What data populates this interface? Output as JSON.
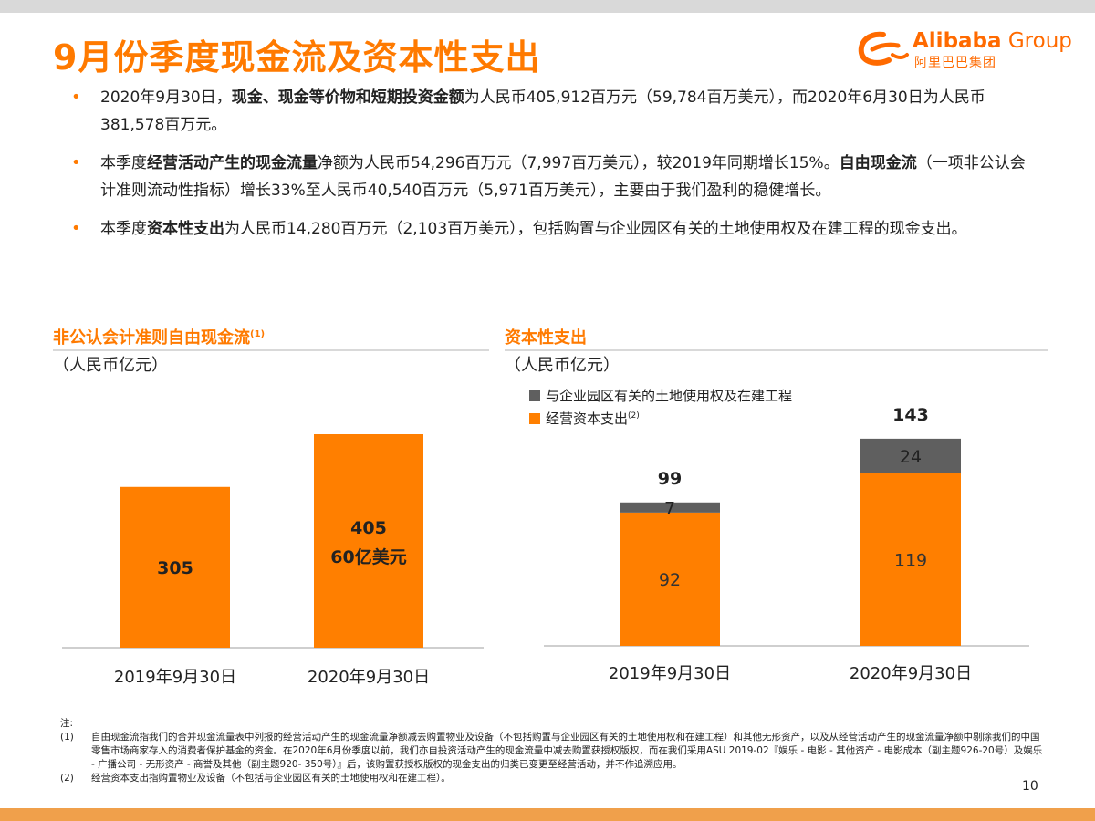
{
  "title": "9月份季度现金流及资本性支出",
  "logo": {
    "brand": "Alibaba",
    "group": "Group",
    "cn": "阿里巴巴集团"
  },
  "bullets": [
    {
      "parts": [
        {
          "t": "2020年9月30日，",
          "b": false
        },
        {
          "t": "现金、现金等价物和短期投资金额",
          "b": true
        },
        {
          "t": "为人民币405,912百万元（59,784百万美元），而2020年6月30日为人民币381,578百万元。",
          "b": false
        }
      ]
    },
    {
      "parts": [
        {
          "t": "本季度",
          "b": false
        },
        {
          "t": "经营活动产生的现金流量",
          "b": true
        },
        {
          "t": "净额为人民币54,296百万元（7,997百万美元），较2019年同期增长15%。",
          "b": false
        },
        {
          "t": "自由现金流",
          "b": true
        },
        {
          "t": "（一项非公认会计准则流动性指标）增长33%至人民币40,540百万元（5,971百万美元），主要由于我们盈利的稳健增长。",
          "b": false
        }
      ]
    },
    {
      "parts": [
        {
          "t": "本季度",
          "b": false
        },
        {
          "t": "资本性支出",
          "b": true
        },
        {
          "t": "为人民币14,280百万元（2,103百万美元），包括购置与企业园区有关的土地使用权及在建工程的现金支出。",
          "b": false
        }
      ]
    }
  ],
  "left_section": {
    "title": "非公认会计准则自由现金流",
    "note_mark": "(1)",
    "unit": "（人民币亿元）"
  },
  "right_section": {
    "title": "资本性支出",
    "unit": "（人民币亿元）"
  },
  "chart_data": [
    {
      "type": "bar",
      "title": "非公认会计准则自由现金流",
      "ylabel": "（人民币亿元）",
      "categories": [
        "2019年9月30日",
        "2020年9月30日"
      ],
      "series": [
        {
          "values": [
            305,
            405
          ],
          "color": "#ff7f00"
        }
      ],
      "bar_labels": [
        "305",
        "405"
      ],
      "extra_label": {
        "index": 1,
        "text": "60亿美元"
      },
      "ylim": [
        0,
        450
      ],
      "grid": false
    },
    {
      "type": "bar",
      "stacked": true,
      "title": "资本性支出",
      "ylabel": "（人民币亿元）",
      "categories": [
        "2019年9月30日",
        "2020年9月30日"
      ],
      "series": [
        {
          "name": "经营资本支出",
          "note_mark": "(2)",
          "values": [
            92,
            119
          ],
          "color": "#ff7f00"
        },
        {
          "name": "与企业园区有关的土地使用权及在建工程",
          "values": [
            7,
            24
          ],
          "color": "#5f5f5f"
        }
      ],
      "totals": [
        99,
        143
      ],
      "ylim": [
        0,
        170
      ],
      "legend": "top-left",
      "grid": false
    }
  ],
  "notes": {
    "label": "注:",
    "items": [
      {
        "key": "(1)",
        "text": "自由现金流指我们的合并现金流量表中列报的经营活动产生的现金流量净额减去购置物业及设备（不包括购置与企业园区有关的土地使用权和在建工程）和其他无形资产，以及从经营活动产生的现金流量净额中剔除我们的中国零售市场商家存入的消费者保护基金的资金。在2020年6月份季度以前，我们亦自投资活动产生的现金流量中减去购置获授权版权，而在我们采用ASU 2019-02『娱乐 - 电影 - 其他资产 - 电影成本（副主题926-20号）及娱乐 - 广播公司 - 无形资产 - 商誉及其他（副主题920- 350号）』后，该购置获授权版权的现金支出的归类已变更至经营活动，并不作追溯应用。"
      },
      {
        "key": "(2)",
        "text": "经营资本支出指购置物业及设备（不包括与企业园区有关的土地使用权和在建工程）。"
      }
    ]
  },
  "page_number": "10"
}
